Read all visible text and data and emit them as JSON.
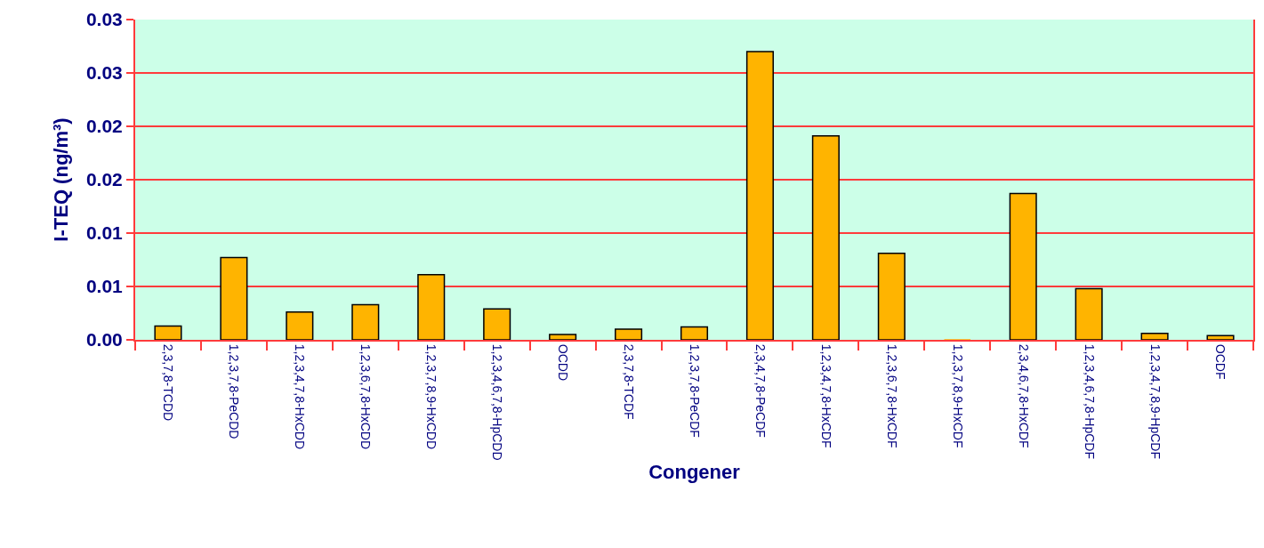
{
  "chart_data": {
    "type": "bar",
    "xlabel": "Congener",
    "ylabel": "I-TEQ (ng/m³)",
    "categories": [
      "2,3,7,8-TCDD",
      "1,2,3,7,8-PeCDD",
      "1,2,3,4,7,8-HxCDD",
      "1,2,3,6,7,8-HxCDD",
      "1,2,3,7,8,9-HxCDD",
      "1,2,3,4,6,7,8-HpCDD",
      "OCDD",
      "2,3,7,8-TCDF",
      "1,2,3,7,8-PeCDF",
      "2,3,4,7,8-PeCDF",
      "1,2,3,4,7,8-HxCDF",
      "1,2,3,6,7,8-HxCDF",
      "1,2,3,7,8,9-HxCDF",
      "2,3,4,6,7,8-HxCDF",
      "1,2,3,4,6,7,8-HpCDF",
      "1,2,3,4,7,8,9-HpCDF",
      "OCDF"
    ],
    "values": [
      0.0013,
      0.0077,
      0.0026,
      0.0033,
      0.0061,
      0.0029,
      0.0005,
      0.001,
      0.0012,
      0.027,
      0.0191,
      0.0081,
      0.0,
      0.0137,
      0.0048,
      0.0006,
      0.0004
    ],
    "color": "#ffb400",
    "ylim": [
      0,
      0.03
    ],
    "yticks": [
      {
        "value": 0,
        "label": "0.00"
      },
      {
        "value": 0.005,
        "label": "0.01"
      },
      {
        "value": 0.01,
        "label": "0.01"
      },
      {
        "value": 0.015,
        "label": "0.02"
      },
      {
        "value": 0.02,
        "label": "0.02"
      },
      {
        "value": 0.025,
        "label": "0.03"
      },
      {
        "value": 0.03,
        "label": "0.03"
      }
    ],
    "grid": "y"
  }
}
